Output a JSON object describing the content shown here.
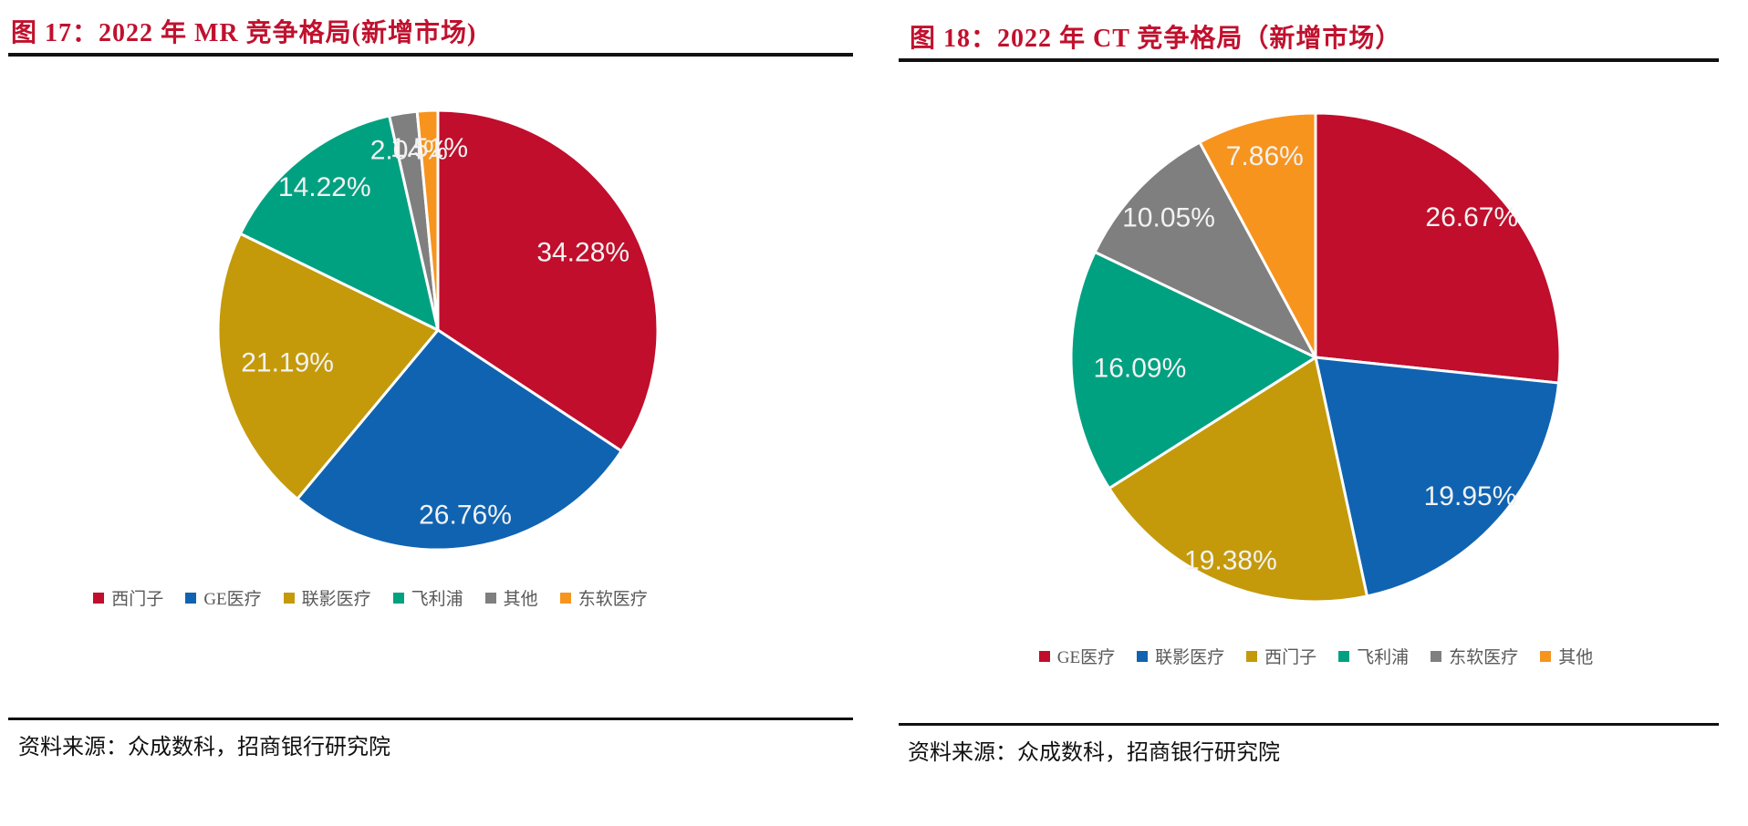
{
  "accent_color": "#C0112E",
  "figures": [
    {
      "title": "图 17：2022 年 MR 竞争格局(新增市场)",
      "source": "资料来源：众成数科，招商银行研究院"
    },
    {
      "title": "图 18：2022 年 CT 竞争格局（新增市场）",
      "source": "资料来源：众成数科，招商银行研究院"
    }
  ],
  "chart_data": [
    {
      "type": "pie",
      "title": "图 17：2022 年 MR 竞争格局(新增市场)",
      "legend_position": "bottom",
      "start_angle": 0,
      "direction": "clockwise",
      "slice_border_color": "#FFFFFF",
      "series": [
        {
          "name": "西门子",
          "value": 34.28,
          "label": "34.28%",
          "color": "#C00E2C"
        },
        {
          "name": "GE医疗",
          "value": 26.76,
          "label": "26.76%",
          "color": "#1063B1"
        },
        {
          "name": "联影医疗",
          "value": 21.19,
          "label": "21.19%",
          "color": "#C49A0B"
        },
        {
          "name": "飞利浦",
          "value": 14.22,
          "label": "14.22%",
          "color": "#00A181"
        },
        {
          "name": "其他",
          "value": 2.04,
          "label": "2.04%",
          "color": "#7F7F7F"
        },
        {
          "name": "东软医疗",
          "value": 1.51,
          "label": "1.51%",
          "color": "#F7941E"
        }
      ],
      "label_r_factors": [
        0.75,
        0.85,
        0.7,
        0.83,
        0.83,
        0.83
      ]
    },
    {
      "type": "pie",
      "title": "图 18：2022 年 CT 竞争格局（新增市场）",
      "legend_position": "bottom",
      "start_angle": 0,
      "direction": "clockwise",
      "slice_border_color": "#FFFFFF",
      "series": [
        {
          "name": "GE医疗",
          "value": 26.67,
          "label": "26.67%",
          "color": "#C00E2C"
        },
        {
          "name": "联影医疗",
          "value": 19.95,
          "label": "19.95%",
          "color": "#1063B1"
        },
        {
          "name": "西门子",
          "value": 19.38,
          "label": "19.38%",
          "color": "#C49A0B"
        },
        {
          "name": "飞利浦",
          "value": 16.09,
          "label": "16.09%",
          "color": "#00A181"
        },
        {
          "name": "东软医疗",
          "value": 10.05,
          "label": "10.05%",
          "color": "#7F7F7F"
        },
        {
          "name": "其他",
          "value": 7.86,
          "label": "7.86%",
          "color": "#F7941E"
        }
      ],
      "label_r_factors": [
        0.86,
        0.85,
        0.9,
        0.72,
        0.83,
        0.85
      ]
    }
  ]
}
